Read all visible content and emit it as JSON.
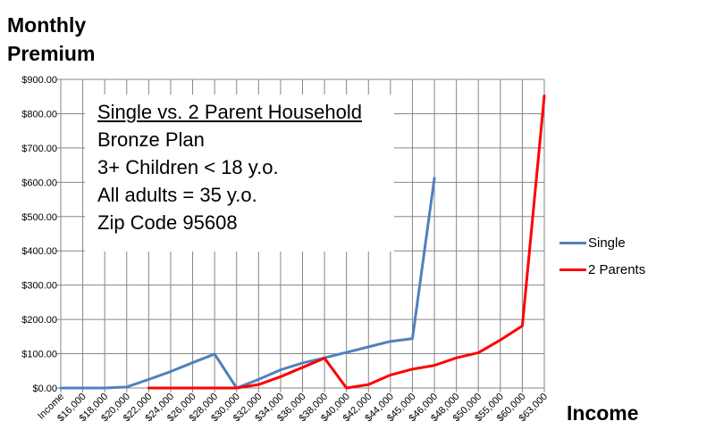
{
  "chart_data": {
    "type": "line",
    "ylabel_line1": "Monthly",
    "ylabel_line2": "Premium",
    "xlabel": "Income",
    "ylim": [
      0,
      900
    ],
    "yticks": [
      "$0.00",
      "$100.00",
      "$200.00",
      "$300.00",
      "$400.00",
      "$500.00",
      "$600.00",
      "$700.00",
      "$800.00",
      "$900.00"
    ],
    "categories": [
      "Income",
      "$16,000",
      "$18,000",
      "$20,000",
      "$22,000",
      "$24,000",
      "$26,000",
      "$28,000",
      "$30,000",
      "$32,000",
      "$34,000",
      "$36,000",
      "$38,000",
      "$40,000",
      "$42,000",
      "$44,000",
      "$45,000",
      "$46,000",
      "$48,000",
      "$50,000",
      "$55,000",
      "$60,000",
      "$63,000"
    ],
    "series": [
      {
        "name": "Single",
        "color": "#4f81bd",
        "values": [
          0,
          0,
          0,
          3,
          25,
          48,
          74,
          99,
          0,
          25,
          53,
          73,
          88,
          104,
          120,
          136,
          144,
          612,
          null,
          null,
          null,
          null,
          null
        ]
      },
      {
        "name": "2 Parents",
        "color": "#ff0000",
        "values": [
          null,
          null,
          null,
          null,
          0,
          0,
          0,
          0,
          0,
          10,
          33,
          60,
          87,
          0,
          10,
          38,
          55,
          66,
          88,
          103,
          140,
          181,
          852
        ]
      }
    ],
    "grid": true,
    "legend_position": "right",
    "annotation": {
      "line1": "Single vs. 2 Parent Household",
      "line2": "Bronze Plan",
      "line3": "3+ Children < 18 y.o.",
      "line4": "All adults = 35 y.o.",
      "line5": "Zip Code 95608"
    }
  }
}
